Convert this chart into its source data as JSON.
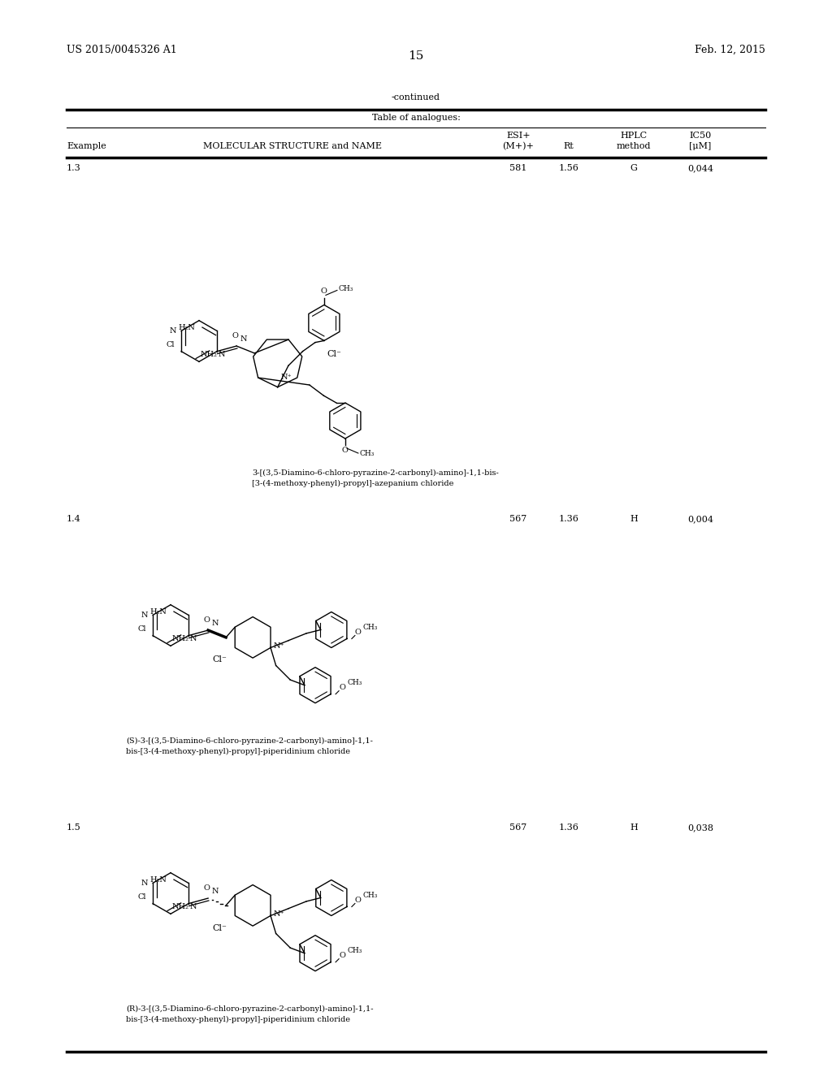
{
  "bg_color": "#ffffff",
  "page_width": 10.24,
  "page_height": 13.2,
  "header_left": "US 2015/0045326 A1",
  "header_right": "Feb. 12, 2015",
  "page_number": "15",
  "continued_text": "-continued",
  "table_title": "Table of analogues:",
  "rows": [
    {
      "example": "1.3",
      "mw": "581",
      "rt": "1.56",
      "hplc": "G",
      "ic50": "0,044",
      "name_line1": "3-[(3,5-Diamino-6-chloro-pyrazine-2-carbonyl)-amino]-1,1-bis-",
      "name_line2": "[3-(4-methoxy-phenyl)-propyl]-azepanium chloride"
    },
    {
      "example": "1.4",
      "mw": "567",
      "rt": "1.36",
      "hplc": "H",
      "ic50": "0,004",
      "name_line1": "(S)-3-[(3,5-Diamino-6-chloro-pyrazine-2-carbonyl)-amino]-1,1-",
      "name_line2": "bis-[3-(4-methoxy-phenyl)-propyl]-piperidinium chloride"
    },
    {
      "example": "1.5",
      "mw": "567",
      "rt": "1.36",
      "hplc": "H",
      "ic50": "0,038",
      "name_line1": "(R)-3-[(3,5-Diamino-6-chloro-pyrazine-2-carbonyl)-amino]-1,1-",
      "name_line2": "bis-[3-(4-methoxy-phenyl)-propyl]-piperidinium chloride"
    }
  ],
  "font_size_body": 8,
  "text_color": "#000000"
}
